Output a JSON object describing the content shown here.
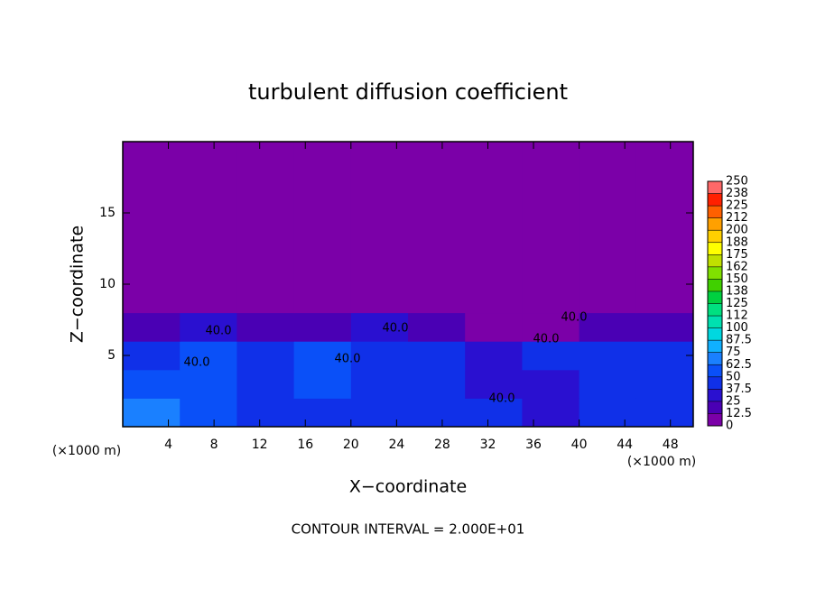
{
  "chart_data": {
    "type": "heatmap",
    "title": "turbulent diffusion coefficient",
    "xlabel": "X−coordinate",
    "ylabel": "Z−coordinate",
    "xunit": "(×1000 m)",
    "yunit": "(×1000 m)",
    "footer": "CONTOUR INTERVAL = 2.000E+01",
    "contour_labels": [
      "40.0",
      "40.0",
      "40.0",
      "40.0",
      "40.0",
      "40.0",
      "40.0"
    ],
    "xlim": [
      0,
      50
    ],
    "ylim": [
      0,
      20
    ],
    "xticks": [
      4,
      8,
      12,
      16,
      20,
      24,
      28,
      32,
      36,
      40,
      44,
      48
    ],
    "yticks": [
      5,
      10,
      15
    ],
    "x_edges": [
      0,
      5,
      10,
      15,
      20,
      25,
      30,
      35,
      40,
      45,
      50
    ],
    "z_edges": [
      0,
      2,
      4,
      6,
      8,
      20
    ],
    "z": [
      [
        62.5,
        55,
        45,
        45,
        40,
        45,
        40,
        35,
        40,
        45
      ],
      [
        50,
        55,
        45,
        50,
        40,
        40,
        35,
        35,
        40,
        45
      ],
      [
        45,
        50,
        45,
        50,
        40,
        45,
        30,
        40,
        40,
        45
      ],
      [
        20,
        25,
        20,
        20,
        25,
        20,
        5,
        10,
        20,
        20
      ],
      [
        0,
        0,
        0,
        0,
        0,
        0,
        0,
        0,
        0,
        0
      ]
    ],
    "levels": [
      0,
      12.5,
      25,
      37.5,
      50,
      62.5,
      75,
      87.5,
      100,
      {
        "value": 112.5,
        "label": "112"
      },
      125,
      {
        "value": 137.5,
        "label": "138"
      },
      150,
      {
        "value": 162.5,
        "label": "162"
      },
      175,
      {
        "value": 187.5,
        "label": "188"
      },
      200,
      {
        "value": 212.5,
        "label": "212"
      },
      225,
      {
        "value": 237.5,
        "label": "238"
      },
      250
    ],
    "colors": [
      "#7b00a8",
      "#4a00b4",
      "#2a10d0",
      "#1030e8",
      "#0a50f8",
      "#1a80ff",
      "#10b0ff",
      "#00d8e0",
      "#00e0b0",
      "#00e080",
      "#00d040",
      "#40d000",
      "#80e000",
      "#c0e000",
      "#ffff00",
      "#ffd000",
      "#ffa000",
      "#ff6000",
      "#ff2000",
      "#ff6868"
    ]
  }
}
